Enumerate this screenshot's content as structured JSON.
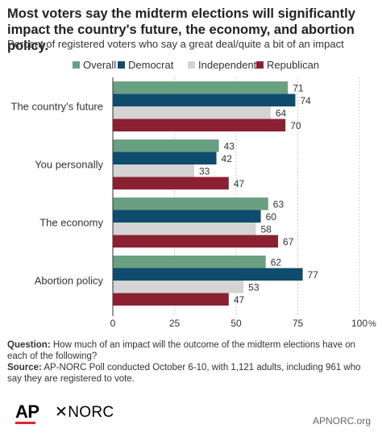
{
  "title": "Most voters say the midterm elections will significantly impact the country's future, the economy, and abortion policy.",
  "subtitle": "Percent of registered voters who say a great deal/quite a bit of an impact",
  "chart_data": {
    "type": "bar",
    "orientation": "horizontal",
    "categories": [
      "The country's future",
      "You personally",
      "The economy",
      "Abortion policy"
    ],
    "series": [
      {
        "name": "Overall",
        "color": "#6aa082",
        "values": [
          71,
          43,
          63,
          62
        ]
      },
      {
        "name": "Democrat",
        "color": "#0f4c6e",
        "values": [
          74,
          42,
          60,
          77
        ]
      },
      {
        "name": "Independents",
        "color": "#d4d4d4",
        "values": [
          64,
          33,
          58,
          53
        ]
      },
      {
        "name": "Republican",
        "color": "#8c2033",
        "values": [
          70,
          47,
          67,
          47
        ]
      }
    ],
    "xlim": [
      0,
      100
    ],
    "xticks": [
      "0",
      "25",
      "50",
      "75",
      "100"
    ],
    "xtick_unit": "%",
    "grid": true,
    "legend_position": "top"
  },
  "footer": {
    "question_label": "Question:",
    "question_text": "How much of an impact will the outcome of the midterm elections have on each of the following?",
    "source_label": "Source:",
    "source_text": "AP-NORC Poll conducted October 6-10, with 1,121 adults, including 961 who say they are registered to vote.",
    "logo_ap": "AP",
    "logo_norc": "✕NORC",
    "site": "APNORC.org"
  }
}
